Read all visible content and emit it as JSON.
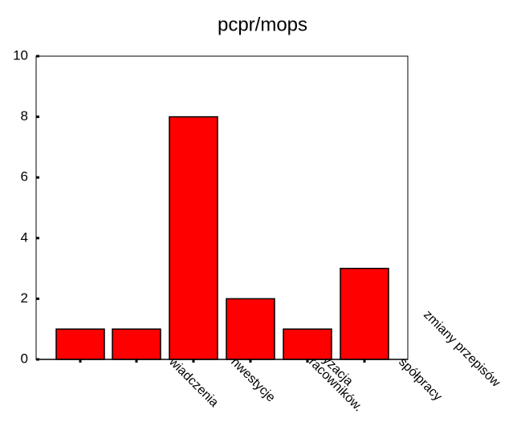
{
  "chart_data": {
    "type": "bar",
    "title": "pcpr/mops",
    "categories": [
      "wiadczenia",
      "nwestycje",
      "racowników.",
      "atyzacja",
      "spółpracy",
      "zmiany przepisów"
    ],
    "values": [
      1,
      1,
      8,
      2,
      1,
      3
    ],
    "color": "#ff0000",
    "ylim": [
      0,
      10
    ],
    "yticks": [
      0,
      2,
      4,
      6,
      8,
      10
    ],
    "grid": false
  }
}
